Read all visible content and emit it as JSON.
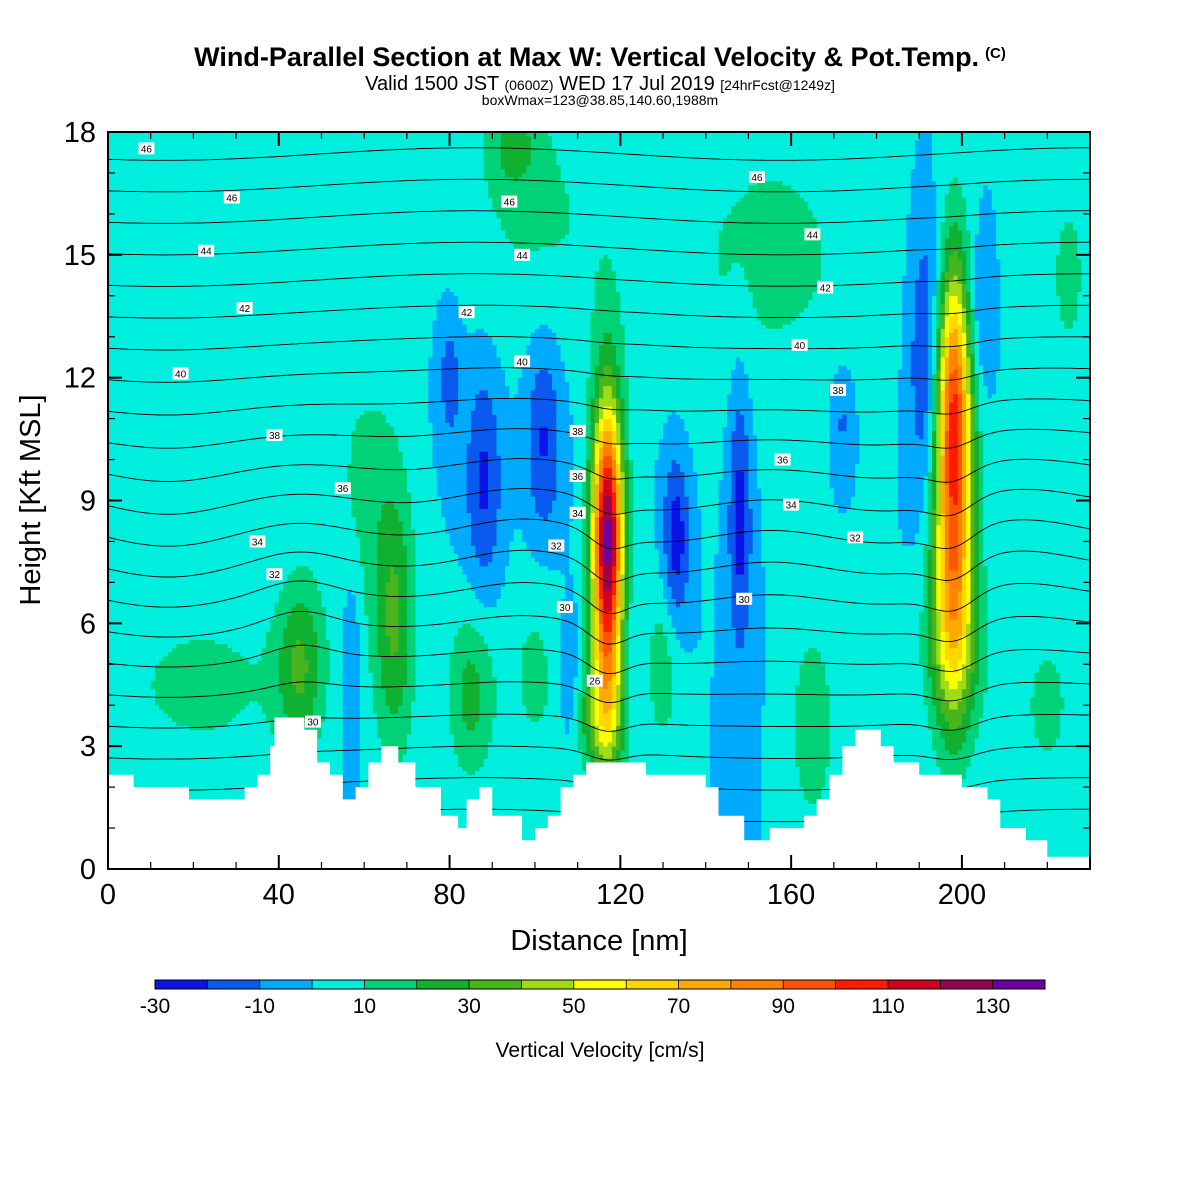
{
  "header": {
    "title": "Wind-Parallel Section at Max W: Vertical Velocity & Pot.Temp.",
    "title_mark": "(C)",
    "valid_prefix": "Valid 1500 JST",
    "valid_utc": "(0600Z)",
    "valid_date": "WED 17 Jul 2019",
    "forecast_info": "[24hrFcst@1249z]",
    "box_info": "boxWmax=123@38.85,140.60,1988m"
  },
  "chart_data": {
    "type": "heatmap",
    "title": "Wind-Parallel Section at Max W: Vertical Velocity & Pot.Temp.",
    "xlabel": "Distance [nm]",
    "ylabel": "Height [Kft MSL]",
    "xlim": [
      0,
      230
    ],
    "ylim": [
      0,
      18
    ],
    "x_ticks": [
      0,
      40,
      80,
      120,
      160,
      200
    ],
    "y_ticks": [
      0,
      3,
      6,
      9,
      12,
      15,
      18
    ],
    "grid": false,
    "background_w": 0,
    "colorbar": {
      "label": "Vertical Velocity [cm/s]",
      "tick_labels": [
        "-30",
        "-10",
        "10",
        "30",
        "50",
        "70",
        "90",
        "110",
        "130"
      ],
      "levels": [
        -30,
        -20,
        -10,
        0,
        10,
        20,
        30,
        40,
        50,
        60,
        70,
        80,
        90,
        100,
        110,
        120,
        130,
        140
      ],
      "colors": [
        "#0a14e6",
        "#0a5af0",
        "#00aaff",
        "#00eedd",
        "#00d278",
        "#10b030",
        "#4ab41c",
        "#a0dc14",
        "#ffff00",
        "#ffd700",
        "#ffaa00",
        "#ff8200",
        "#ff5500",
        "#ff1a00",
        "#d2001e",
        "#9b0050",
        "#6a00a0"
      ]
    },
    "terrain": [
      [
        0,
        2.3
      ],
      [
        6,
        2.3
      ],
      [
        6,
        2.0
      ],
      [
        19,
        2.0
      ],
      [
        19,
        1.7
      ],
      [
        32,
        1.7
      ],
      [
        32,
        2.0
      ],
      [
        35,
        2.0
      ],
      [
        35,
        2.3
      ],
      [
        38,
        2.3
      ],
      [
        38,
        3.0
      ],
      [
        39,
        3.0
      ],
      [
        39,
        3.7
      ],
      [
        46,
        3.7
      ],
      [
        46,
        3.4
      ],
      [
        49,
        3.4
      ],
      [
        49,
        2.6
      ],
      [
        52,
        2.6
      ],
      [
        52,
        2.3
      ],
      [
        55,
        2.3
      ],
      [
        55,
        1.7
      ],
      [
        58,
        1.7
      ],
      [
        58,
        2.0
      ],
      [
        61,
        2.0
      ],
      [
        61,
        2.6
      ],
      [
        64,
        2.6
      ],
      [
        64,
        3.0
      ],
      [
        68,
        3.0
      ],
      [
        68,
        2.6
      ],
      [
        72,
        2.6
      ],
      [
        72,
        2.0
      ],
      [
        78,
        2.0
      ],
      [
        78,
        1.3
      ],
      [
        82,
        1.3
      ],
      [
        82,
        1.0
      ],
      [
        84,
        1.0
      ],
      [
        84,
        1.7
      ],
      [
        87,
        1.7
      ],
      [
        87,
        2.0
      ],
      [
        90,
        2.0
      ],
      [
        90,
        1.3
      ],
      [
        97,
        1.3
      ],
      [
        97,
        0.7
      ],
      [
        100,
        0.7
      ],
      [
        100,
        1.0
      ],
      [
        103,
        1.0
      ],
      [
        103,
        1.3
      ],
      [
        106,
        1.3
      ],
      [
        106,
        2.0
      ],
      [
        109,
        2.0
      ],
      [
        109,
        2.3
      ],
      [
        112,
        2.3
      ],
      [
        112,
        2.6
      ],
      [
        126,
        2.6
      ],
      [
        126,
        2.3
      ],
      [
        140,
        2.3
      ],
      [
        140,
        2.0
      ],
      [
        143,
        2.0
      ],
      [
        143,
        1.3
      ],
      [
        149,
        1.3
      ],
      [
        149,
        0.7
      ],
      [
        155,
        0.7
      ],
      [
        155,
        1.0
      ],
      [
        163,
        1.0
      ],
      [
        163,
        1.3
      ],
      [
        166,
        1.3
      ],
      [
        166,
        1.7
      ],
      [
        169,
        1.7
      ],
      [
        169,
        2.3
      ],
      [
        172,
        2.3
      ],
      [
        172,
        3.0
      ],
      [
        175,
        3.0
      ],
      [
        175,
        3.4
      ],
      [
        181,
        3.4
      ],
      [
        181,
        3.0
      ],
      [
        184,
        3.0
      ],
      [
        184,
        2.6
      ],
      [
        190,
        2.6
      ],
      [
        190,
        2.3
      ],
      [
        200,
        2.3
      ],
      [
        200,
        2.0
      ],
      [
        206,
        2.0
      ],
      [
        206,
        1.7
      ],
      [
        209,
        1.7
      ],
      [
        209,
        1.0
      ],
      [
        215,
        1.0
      ],
      [
        215,
        0.7
      ],
      [
        220,
        0.7
      ],
      [
        220,
        0.3
      ],
      [
        230,
        0.3
      ]
    ],
    "w_features": [
      {
        "x": 117,
        "y": 7.5,
        "sx": 2.6,
        "sy": 2.8,
        "w": 115
      },
      {
        "x": 117,
        "y": 8.7,
        "sx": 2.2,
        "sy": 1.4,
        "w": 25
      },
      {
        "x": 198,
        "y": 9.5,
        "sx": 3.2,
        "sy": 3.4,
        "w": 95
      },
      {
        "x": 198,
        "y": 5.5,
        "sx": 5.0,
        "sy": 1.6,
        "w": 25
      },
      {
        "x": 198,
        "y": 12.0,
        "sx": 2.5,
        "sy": 1.8,
        "w": 25
      },
      {
        "x": 45,
        "y": 5.0,
        "sx": 4.0,
        "sy": 1.6,
        "w": 28
      },
      {
        "x": 67,
        "y": 6.0,
        "sx": 3.5,
        "sy": 2.4,
        "w": 30
      },
      {
        "x": 85,
        "y": 4.3,
        "sx": 4.0,
        "sy": 1.5,
        "w": 24
      },
      {
        "x": 115,
        "y": 3.7,
        "sx": 4.5,
        "sy": 1.0,
        "w": 25
      },
      {
        "x": 165,
        "y": 3.5,
        "sx": 3.5,
        "sy": 1.6,
        "w": 20
      },
      {
        "x": 130,
        "y": 5.0,
        "sx": 3.0,
        "sy": 1.6,
        "w": 16
      },
      {
        "x": 100,
        "y": 4.8,
        "sx": 5.0,
        "sy": 2.0,
        "w": 12
      },
      {
        "x": 22,
        "y": 4.5,
        "sx": 16.0,
        "sy": 1.5,
        "w": 13
      },
      {
        "x": 60,
        "y": 9.5,
        "sx": 6.0,
        "sy": 2.5,
        "w": 12
      },
      {
        "x": 155,
        "y": 15.0,
        "sx": 20.0,
        "sy": 3.0,
        "w": 12
      },
      {
        "x": 100,
        "y": 16.0,
        "sx": 14.0,
        "sy": 2.5,
        "w": 11
      },
      {
        "x": 220,
        "y": 4.0,
        "sx": 8.0,
        "sy": 2.5,
        "w": 11
      },
      {
        "x": 225,
        "y": 14.5,
        "sx": 6.0,
        "sy": 3.0,
        "w": 11
      },
      {
        "x": 95,
        "y": 17.7,
        "sx": 4.0,
        "sy": 0.8,
        "w": 18
      },
      {
        "x": 88,
        "y": 9.5,
        "sx": 3.0,
        "sy": 2.0,
        "w": -22
      },
      {
        "x": 102,
        "y": 10.5,
        "sx": 3.0,
        "sy": 1.8,
        "w": -22
      },
      {
        "x": 133,
        "y": 8.0,
        "sx": 2.2,
        "sy": 1.5,
        "w": -28
      },
      {
        "x": 148,
        "y": 8.7,
        "sx": 2.0,
        "sy": 2.5,
        "w": -25
      },
      {
        "x": 192,
        "y": 12.5,
        "sx": 3.0,
        "sy": 2.5,
        "w": -26
      },
      {
        "x": 204,
        "y": 13.5,
        "sx": 2.0,
        "sy": 1.5,
        "w": -14
      },
      {
        "x": 80,
        "y": 12.0,
        "sx": 2.0,
        "sy": 1.2,
        "w": -16
      },
      {
        "x": 57,
        "y": 5.0,
        "sx": 1.5,
        "sy": 1.5,
        "w": -14
      },
      {
        "x": 108,
        "y": 4.5,
        "sx": 2.0,
        "sy": 1.3,
        "w": -14
      },
      {
        "x": 122,
        "y": 5.0,
        "sx": 1.6,
        "sy": 1.0,
        "w": -8
      },
      {
        "x": 172,
        "y": 11.0,
        "sx": 2.0,
        "sy": 1.0,
        "w": -14
      }
    ],
    "theta_levels": [
      24,
      25,
      26,
      27,
      28,
      29,
      30,
      31,
      32,
      33,
      34,
      35,
      36,
      37,
      38,
      39,
      40,
      41,
      42,
      43,
      44,
      45,
      46,
      47,
      48
    ],
    "theta_labels": [
      {
        "text": "46",
        "x": 9,
        "y": 17.6
      },
      {
        "text": "46",
        "x": 29,
        "y": 16.4
      },
      {
        "text": "44",
        "x": 23,
        "y": 15.1
      },
      {
        "text": "42",
        "x": 32,
        "y": 13.7
      },
      {
        "text": "40",
        "x": 17,
        "y": 12.1
      },
      {
        "text": "38",
        "x": 39,
        "y": 10.6
      },
      {
        "text": "36",
        "x": 55,
        "y": 9.3
      },
      {
        "text": "34",
        "x": 35,
        "y": 8.0
      },
      {
        "text": "32",
        "x": 39,
        "y": 7.2
      },
      {
        "text": "30",
        "x": 48,
        "y": 3.6
      },
      {
        "text": "46",
        "x": 94,
        "y": 16.3
      },
      {
        "text": "44",
        "x": 97,
        "y": 15.0
      },
      {
        "text": "42",
        "x": 84,
        "y": 13.6
      },
      {
        "text": "40",
        "x": 97,
        "y": 12.4
      },
      {
        "text": "38",
        "x": 110,
        "y": 10.7
      },
      {
        "text": "36",
        "x": 110,
        "y": 9.6
      },
      {
        "text": "34",
        "x": 110,
        "y": 8.7
      },
      {
        "text": "32",
        "x": 105,
        "y": 7.9
      },
      {
        "text": "30",
        "x": 107,
        "y": 6.4
      },
      {
        "text": "26",
        "x": 114,
        "y": 4.6
      },
      {
        "text": "46",
        "x": 152,
        "y": 16.9
      },
      {
        "text": "44",
        "x": 165,
        "y": 15.5
      },
      {
        "text": "42",
        "x": 168,
        "y": 14.2
      },
      {
        "text": "40",
        "x": 162,
        "y": 12.8
      },
      {
        "text": "38",
        "x": 171,
        "y": 11.7
      },
      {
        "text": "36",
        "x": 158,
        "y": 10.0
      },
      {
        "text": "34",
        "x": 160,
        "y": 8.9
      },
      {
        "text": "32",
        "x": 175,
        "y": 8.1
      },
      {
        "text": "30",
        "x": 149,
        "y": 6.6
      }
    ]
  }
}
